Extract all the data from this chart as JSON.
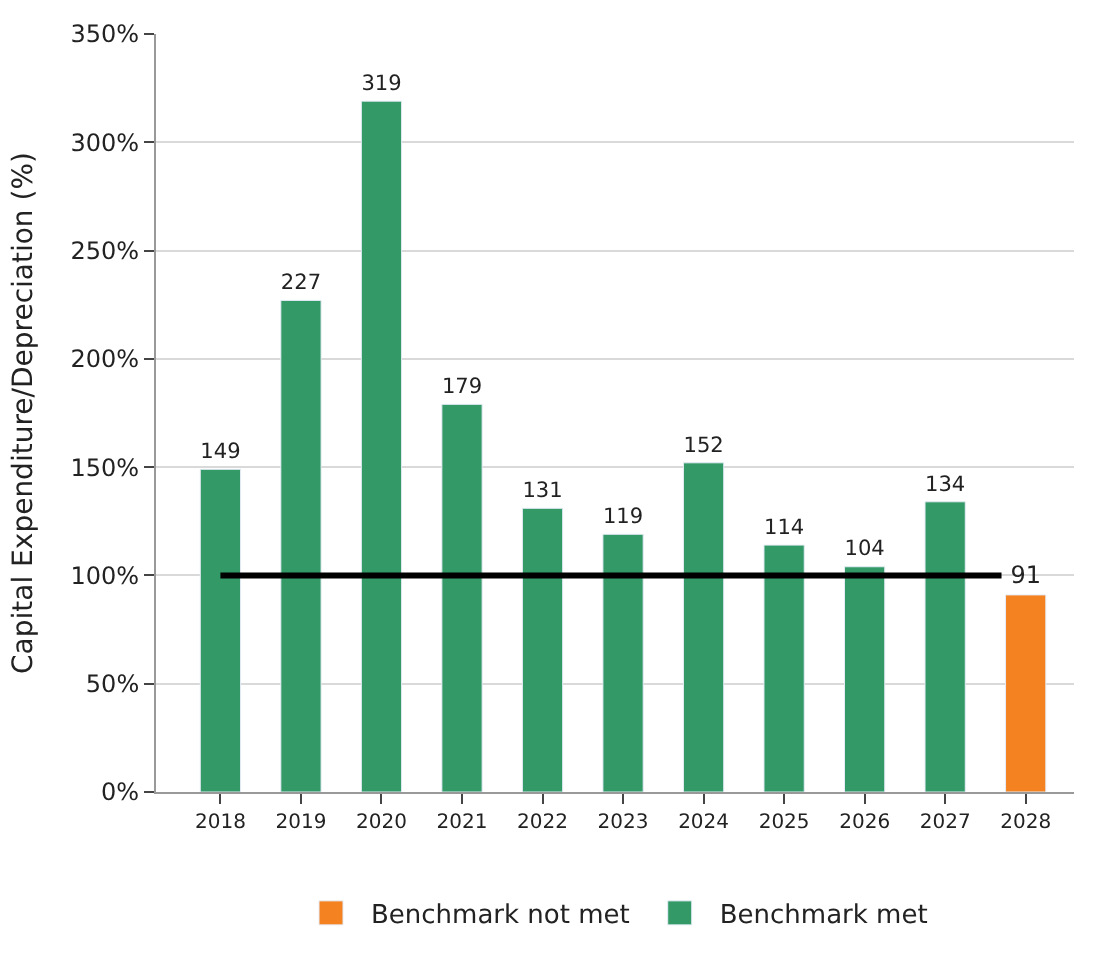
{
  "chart_data": {
    "type": "bar",
    "ylabel": "Capital Expenditure/Depreciation (%)",
    "categories": [
      "2018",
      "2019",
      "2020",
      "2021",
      "2022",
      "2023",
      "2024",
      "2025",
      "2026",
      "2027",
      "2028"
    ],
    "series": [
      {
        "name": "Benchmark not met",
        "color": "#f58220",
        "values": [
          null,
          null,
          null,
          null,
          null,
          null,
          null,
          null,
          null,
          null,
          91
        ]
      },
      {
        "name": "Benchmark met",
        "color": "#339966",
        "values": [
          149,
          227,
          319,
          179,
          131,
          119,
          152,
          114,
          104,
          134,
          null
        ]
      }
    ],
    "ylim": [
      0,
      350
    ],
    "yticks": [
      {
        "value": 0,
        "label": "0%"
      },
      {
        "value": 50,
        "label": "50%"
      },
      {
        "value": 100,
        "label": "100%"
      },
      {
        "value": 150,
        "label": "150%"
      },
      {
        "value": 200,
        "label": "200%"
      },
      {
        "value": 250,
        "label": "250%"
      },
      {
        "value": 300,
        "label": "300%"
      },
      {
        "value": 350,
        "label": "350%"
      }
    ],
    "ref_lines": [
      {
        "axis": "y",
        "value": 100,
        "color": "#000000",
        "line_style": "solid"
      }
    ],
    "data_labels": true,
    "grid": "y",
    "legend": "bottom"
  }
}
